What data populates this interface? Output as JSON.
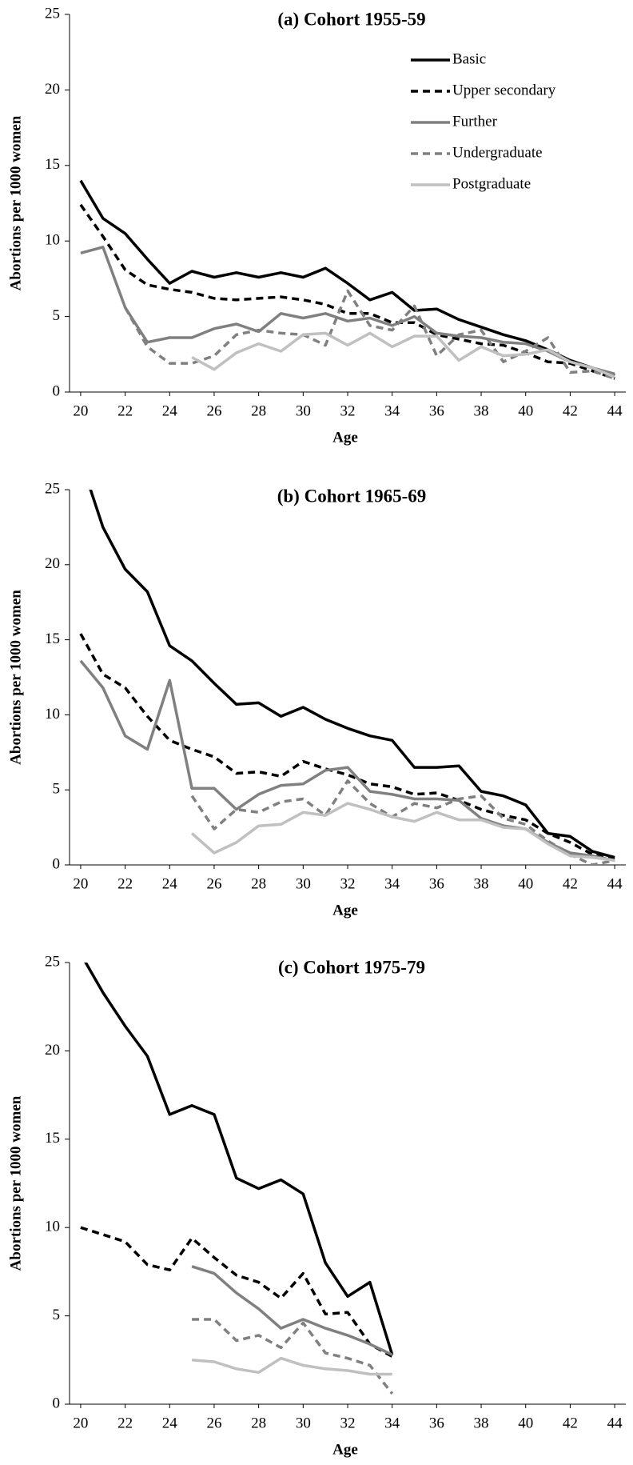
{
  "chart_data": [
    {
      "type": "line",
      "title": "(a) Cohort 1955-59",
      "x_label": "Age",
      "y_label": "Abortions per 1000 women",
      "x": [
        20,
        21,
        22,
        23,
        24,
        25,
        26,
        27,
        28,
        29,
        30,
        31,
        32,
        33,
        34,
        35,
        36,
        37,
        38,
        39,
        40,
        41,
        42,
        43,
        44
      ],
      "xlim": [
        19.5,
        44.5
      ],
      "xticks": [
        20,
        22,
        24,
        26,
        28,
        30,
        32,
        34,
        36,
        38,
        40,
        42,
        44
      ],
      "ylim": [
        0,
        25
      ],
      "yticks": [
        0,
        5,
        10,
        15,
        20,
        25
      ],
      "legend": "top-right",
      "series": [
        {
          "name": "Basic",
          "color": "#000000",
          "dashed": false,
          "values": [
            14,
            11.5,
            10.5,
            8.8,
            7.2,
            8.0,
            7.6,
            7.9,
            7.6,
            7.9,
            7.6,
            8.2,
            7.2,
            6.1,
            6.6,
            5.4,
            5.5,
            4.8,
            4.3,
            3.8,
            3.4,
            2.8,
            2.1,
            1.6,
            1.1
          ]
        },
        {
          "name": "Upper secondary",
          "color": "#000000",
          "dashed": true,
          "values": [
            12.4,
            10.3,
            8.1,
            7.1,
            6.8,
            6.6,
            6.2,
            6.1,
            6.2,
            6.3,
            6.1,
            5.8,
            5.2,
            5.2,
            4.6,
            4.6,
            3.8,
            3.5,
            3.2,
            3.1,
            2.6,
            2.0,
            1.9,
            1.4,
            0.9
          ]
        },
        {
          "name": "Further",
          "color": "#808080",
          "dashed": false,
          "values": [
            9.2,
            9.6,
            5.6,
            3.3,
            3.6,
            3.6,
            4.2,
            4.5,
            4.0,
            5.2,
            4.9,
            5.2,
            4.7,
            4.9,
            4.4,
            5.0,
            3.9,
            3.7,
            3.6,
            3.3,
            3.2,
            2.7,
            2.0,
            1.6,
            1.2
          ]
        },
        {
          "name": "Undergraduate",
          "color": "#808080",
          "dashed": true,
          "values": [
            null,
            null,
            5.6,
            3.0,
            1.9,
            1.9,
            2.4,
            3.8,
            4.1,
            3.9,
            3.8,
            3.1,
            6.7,
            4.4,
            4.1,
            5.7,
            2.4,
            3.8,
            4.1,
            2.0,
            2.7,
            3.6,
            1.3,
            1.4,
            0.9
          ]
        },
        {
          "name": "Postgraduate",
          "color": "#c0c0c0",
          "dashed": false,
          "values": [
            null,
            null,
            null,
            null,
            null,
            2.3,
            1.5,
            2.6,
            3.2,
            2.7,
            3.8,
            3.9,
            3.1,
            3.9,
            3.0,
            3.7,
            3.7,
            2.1,
            3.0,
            2.4,
            2.5,
            2.8,
            2.0,
            1.6,
            1.0
          ]
        }
      ]
    },
    {
      "type": "line",
      "title": "(b) Cohort 1965-69",
      "x_label": "Age",
      "y_label": "Abortions per 1000 women",
      "x": [
        20,
        21,
        22,
        23,
        24,
        25,
        26,
        27,
        28,
        29,
        30,
        31,
        32,
        33,
        34,
        35,
        36,
        37,
        38,
        39,
        40,
        41,
        42,
        43,
        44
      ],
      "xlim": [
        19.5,
        44.5
      ],
      "xticks": [
        20,
        22,
        24,
        26,
        28,
        30,
        32,
        34,
        36,
        38,
        40,
        42,
        44
      ],
      "ylim": [
        0,
        25
      ],
      "yticks": [
        0,
        5,
        10,
        15,
        20,
        25
      ],
      "series": [
        {
          "color": "#000000",
          "dashed": false,
          "values": [
            27,
            22.5,
            19.7,
            18.2,
            14.6,
            13.6,
            12.1,
            10.7,
            10.8,
            9.9,
            10.5,
            9.7,
            9.1,
            8.6,
            8.3,
            6.5,
            6.5,
            6.6,
            4.9,
            4.6,
            4.0,
            2.1,
            1.9,
            0.9,
            0.5
          ]
        },
        {
          "color": "#000000",
          "dashed": true,
          "values": [
            15.4,
            12.7,
            11.8,
            9.9,
            8.3,
            7.7,
            7.2,
            6.1,
            6.2,
            5.9,
            6.9,
            6.4,
            6.0,
            5.4,
            5.2,
            4.7,
            4.8,
            4.3,
            3.7,
            3.3,
            3.0,
            2.1,
            1.5,
            0.7,
            0.4
          ]
        },
        {
          "color": "#808080",
          "dashed": false,
          "values": [
            13.6,
            11.8,
            8.6,
            7.7,
            12.3,
            5.1,
            5.1,
            3.7,
            4.7,
            5.3,
            5.4,
            6.3,
            6.5,
            4.9,
            4.7,
            4.4,
            4.4,
            4.3,
            3.1,
            2.6,
            2.4,
            1.5,
            0.8,
            0.6,
            0.3
          ]
        },
        {
          "color": "#808080",
          "dashed": true,
          "values": [
            null,
            null,
            null,
            null,
            null,
            4.6,
            2.4,
            3.7,
            3.5,
            4.2,
            4.4,
            3.3,
            5.6,
            4.1,
            3.2,
            4.1,
            3.8,
            4.4,
            4.6,
            3.1,
            2.7,
            1.6,
            0.7,
            0.0,
            0.3
          ]
        },
        {
          "color": "#c0c0c0",
          "dashed": false,
          "values": [
            null,
            null,
            null,
            null,
            null,
            2.1,
            0.8,
            1.5,
            2.6,
            2.7,
            3.5,
            3.3,
            4.1,
            3.7,
            3.2,
            2.9,
            3.5,
            3.0,
            3.0,
            2.5,
            2.4,
            1.4,
            0.6,
            0.5,
            0.3
          ]
        }
      ]
    },
    {
      "type": "line",
      "title": "(c) Cohort 1975-79",
      "x_label": "Age",
      "y_label": "Abortions per 1000 women",
      "x": [
        20,
        21,
        22,
        23,
        24,
        25,
        26,
        27,
        28,
        29,
        30,
        31,
        32,
        33,
        34
      ],
      "xlim": [
        19.5,
        44.5
      ],
      "xticks": [
        20,
        22,
        24,
        26,
        28,
        30,
        32,
        34,
        36,
        38,
        40,
        42,
        44
      ],
      "ylim": [
        0,
        25
      ],
      "yticks": [
        0,
        5,
        10,
        15,
        20,
        25
      ],
      "series": [
        {
          "color": "#000000",
          "dashed": false,
          "values": [
            25.5,
            23.3,
            21.4,
            19.7,
            16.4,
            16.9,
            16.4,
            12.8,
            12.2,
            12.7,
            11.9,
            8.0,
            6.1,
            6.9,
            2.8
          ]
        },
        {
          "color": "#000000",
          "dashed": true,
          "values": [
            10.0,
            9.6,
            9.2,
            7.9,
            7.6,
            9.4,
            8.3,
            7.3,
            6.9,
            6.0,
            7.4,
            5.1,
            5.2,
            3.4,
            2.7
          ]
        },
        {
          "color": "#808080",
          "dashed": false,
          "values": [
            null,
            null,
            null,
            null,
            null,
            7.8,
            7.4,
            6.3,
            5.4,
            4.3,
            4.8,
            4.3,
            3.9,
            3.4,
            2.8
          ]
        },
        {
          "color": "#808080",
          "dashed": true,
          "values": [
            null,
            null,
            null,
            null,
            null,
            4.8,
            4.8,
            3.6,
            3.9,
            3.2,
            4.6,
            2.9,
            2.6,
            2.2,
            0.6
          ]
        },
        {
          "color": "#c0c0c0",
          "dashed": false,
          "values": [
            null,
            null,
            null,
            null,
            null,
            2.5,
            2.4,
            2.0,
            1.8,
            2.6,
            2.2,
            2.0,
            1.9,
            1.7,
            1.7
          ]
        }
      ]
    }
  ]
}
